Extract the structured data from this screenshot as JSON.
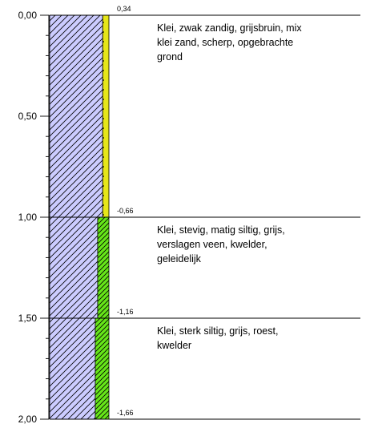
{
  "depth_axis": {
    "labels": [
      "0,00",
      "0,50",
      "1,00",
      "1,50",
      "2,00"
    ],
    "values": [
      0.0,
      0.5,
      1.0,
      1.5,
      2.0
    ],
    "minor_step": 0.1
  },
  "layers": [
    {
      "top_depth": 0.0,
      "bottom_depth": 1.0,
      "top_level": "0,34",
      "description_lines": [
        "Klei, zwak zandig, grijsbruin, mix",
        "klei zand, scherp, opgebrachte",
        "grond"
      ],
      "main_fill": "#ccccff",
      "side_fill": "#e6e619",
      "side_pattern": "dots",
      "side_fraction": 0.105
    },
    {
      "top_depth": 1.0,
      "bottom_depth": 1.5,
      "top_level": "-0,66",
      "description_lines": [
        "Klei, stevig, matig siltig, grijs,",
        "verslagen veen, kwelder,",
        "geleidelijk"
      ],
      "main_fill": "#ccccff",
      "side_fill": "#66e619",
      "side_pattern": "hatch",
      "side_fraction": 0.19
    },
    {
      "top_depth": 1.5,
      "bottom_depth": 2.0,
      "top_level": "-1,16",
      "description_lines": [
        "Klei, sterk siltig, grijs, roest,",
        "kwelder"
      ],
      "main_fill": "#ccccff",
      "side_fill": "#66e619",
      "side_pattern": "hatch",
      "side_fraction": 0.23
    }
  ],
  "bottom_level": "-1,66"
}
